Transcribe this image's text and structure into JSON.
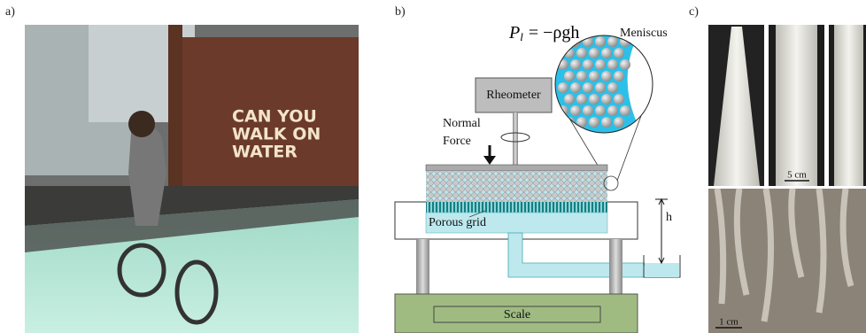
{
  "panels": [
    {
      "label": "a)",
      "sign": [
        "CAN YOU",
        "WALK ON",
        "WATER"
      ]
    },
    {
      "label": "b)",
      "formula": {
        "symbol": "P",
        "subscript": "l",
        "rhs": "= −ρgh"
      },
      "meniscus": "Meniscus",
      "rheometer": "Rheometer",
      "force": [
        "Normal",
        "Force"
      ],
      "grid": "Porous grid",
      "height": "h",
      "scale": "Scale"
    },
    {
      "label": "c)",
      "scale_top": "5 cm",
      "scale_bottom": "1 cm"
    }
  ]
}
